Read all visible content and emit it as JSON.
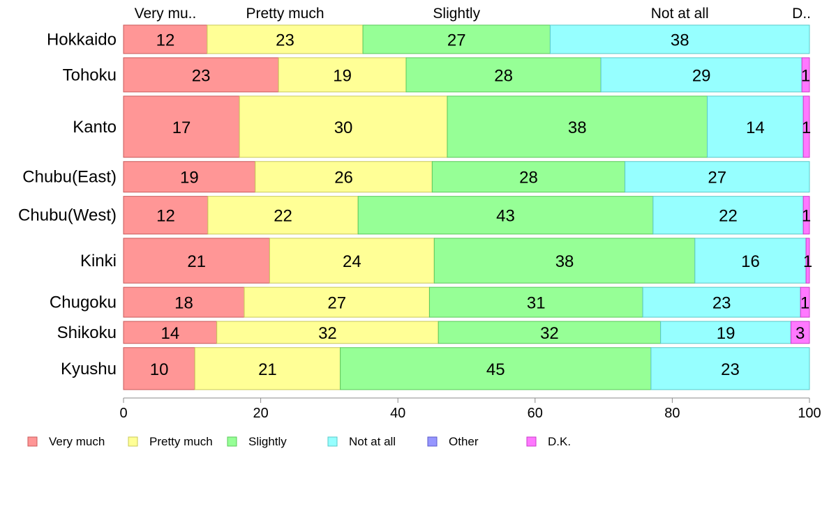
{
  "chart_data": {
    "type": "bar",
    "orientation": "horizontal",
    "stacked": true,
    "categories": [
      "Hokkaido",
      "Tohoku",
      "Kanto",
      "Chubu(East)",
      "Chubu(West)",
      "Kinki",
      "Chugoku",
      "Shikoku",
      "Kyushu"
    ],
    "series": [
      {
        "name": "Very much",
        "values": [
          12.2,
          22.6,
          16.9,
          19.2,
          12.3,
          21.3,
          17.6,
          13.6,
          10.4
        ]
      },
      {
        "name": "Pretty much",
        "values": [
          22.7,
          18.6,
          30.3,
          25.8,
          21.9,
          24.0,
          27.0,
          32.3,
          21.2
        ]
      },
      {
        "name": "Slightly",
        "values": [
          27.3,
          28.4,
          37.9,
          28.1,
          43.0,
          38.0,
          31.1,
          32.4,
          45.3
        ]
      },
      {
        "name": "Not at all",
        "values": [
          37.8,
          29.3,
          14.0,
          26.9,
          21.9,
          16.2,
          23.0,
          19.0,
          23.1
        ]
      },
      {
        "name": "Other",
        "values": [
          0,
          0,
          0,
          0,
          0,
          0,
          0,
          0,
          0
        ]
      },
      {
        "name": "D.K.",
        "values": [
          0,
          1.1,
          0.9,
          0,
          0.9,
          0.5,
          1.3,
          2.7,
          0
        ]
      }
    ],
    "data_labels": [
      [
        "12",
        "23",
        "27",
        "38",
        "",
        ""
      ],
      [
        "23",
        "19",
        "28",
        "29",
        "",
        "1"
      ],
      [
        "17",
        "30",
        "38",
        "14",
        "",
        "1"
      ],
      [
        "19",
        "26",
        "28",
        "27",
        "",
        ""
      ],
      [
        "12",
        "22",
        "43",
        "22",
        "",
        "1"
      ],
      [
        "21",
        "24",
        "38",
        "16",
        "",
        "1"
      ],
      [
        "18",
        "27",
        "31",
        "23",
        "",
        "1"
      ],
      [
        "14",
        "32",
        "32",
        "19",
        "",
        "3"
      ],
      [
        "10",
        "21",
        "45",
        "23",
        "",
        ""
      ]
    ],
    "top_labels": [
      "Very mu..",
      "Pretty much",
      "Slightly",
      "Not at all",
      "D.."
    ],
    "row_weights": [
      40,
      48,
      86,
      43,
      53,
      63,
      42,
      31,
      59
    ],
    "xlim": [
      0,
      100
    ],
    "xticks": [
      0,
      20,
      40,
      60,
      80,
      100
    ],
    "colors": [
      "#ff9696",
      "#ffff96",
      "#96ff96",
      "#96ffff",
      "#9696ff",
      "#ff78ff"
    ],
    "edge_colors": [
      "#c85a5a",
      "#c8c85a",
      "#5ac85a",
      "#5ac8c8",
      "#5a5ac8",
      "#c83cc8"
    ],
    "grid": false,
    "legend_position": "bottom"
  }
}
